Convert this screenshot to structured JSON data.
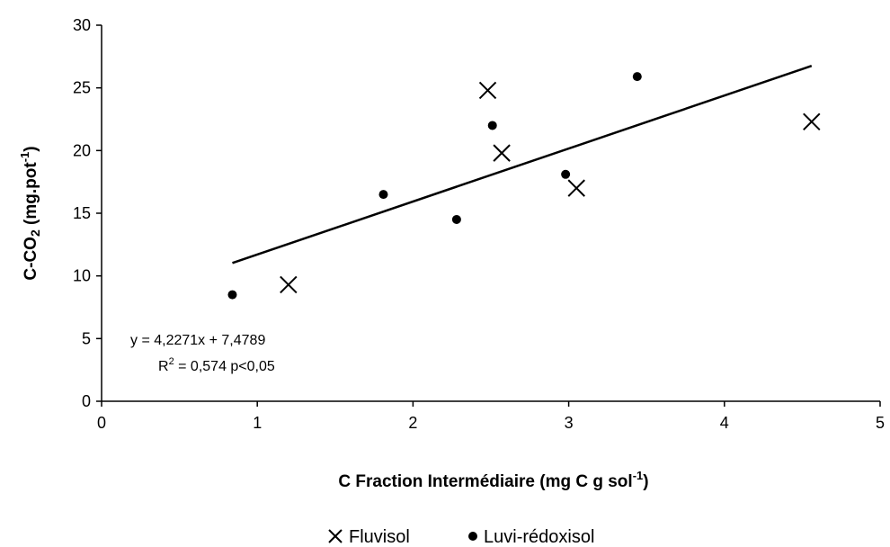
{
  "chart_data": {
    "type": "scatter",
    "xlabel_main": "C Fraction Intermédiaire (mg C g sol",
    "xlabel_sup": "-1",
    "xlabel_end": ")",
    "ylabel_main": "C-CO",
    "ylabel_sub": "2",
    "ylabel_mid": " (mg.pot",
    "ylabel_sup": "-1",
    "ylabel_end": ")",
    "xlim": [
      0,
      5
    ],
    "ylim": [
      0,
      30
    ],
    "x_ticks": [
      "0",
      "1",
      "2",
      "3",
      "4",
      "5"
    ],
    "y_ticks": [
      "0",
      "5",
      "10",
      "15",
      "20",
      "25",
      "30"
    ],
    "series": [
      {
        "name": "Fluvisol",
        "marker": "x",
        "x": [
          1.2,
          2.48,
          2.57,
          3.05,
          4.56
        ],
        "y": [
          9.3,
          24.8,
          19.8,
          17.0,
          22.3
        ]
      },
      {
        "name": "Luvi-rédoxisol",
        "marker": "dot",
        "x": [
          0.84,
          1.81,
          2.28,
          2.51,
          2.98,
          3.44
        ],
        "y": [
          8.5,
          16.5,
          14.5,
          22.0,
          18.1,
          25.9
        ]
      }
    ],
    "trendline": {
      "slope": 4.2271,
      "intercept": 7.4789,
      "x_range": [
        0.84,
        4.56
      ]
    },
    "annotation": {
      "equation": "y = 4,2271x + 7,4789",
      "r2_label": "R",
      "r2_sup": "2",
      "r2_rest": " = 0,574 p<0,05"
    },
    "legend": {
      "position": "bottom-center",
      "items": [
        "Fluvisol",
        "Luvi-rédoxisol"
      ]
    },
    "grid": false
  }
}
